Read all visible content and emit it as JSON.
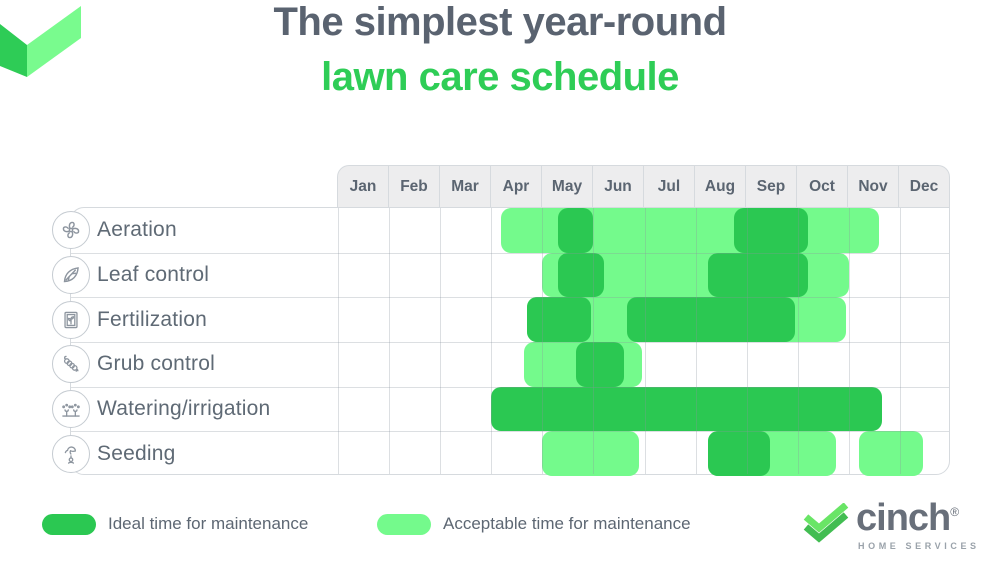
{
  "title": {
    "line1": "The simplest year-round",
    "line2": "lawn care schedule"
  },
  "colors": {
    "ideal_green": "#2bc852",
    "acceptable_green": "#74fa8c",
    "title_gray": "#5a6370",
    "title_green": "#2ecd56",
    "text_gray": "#5d6773",
    "grid_line": "#d6dade",
    "header_bg": "#ededee"
  },
  "chart_data": {
    "type": "gantt-schedule",
    "title": "The simplest year-round lawn care schedule",
    "x_axis": {
      "unit": "month",
      "labels": [
        "Jan",
        "Feb",
        "Mar",
        "Apr",
        "May",
        "Jun",
        "Jul",
        "Aug",
        "Sep",
        "Oct",
        "Nov",
        "Dec"
      ],
      "range": [
        0,
        12
      ]
    },
    "grid": true,
    "legend_position": "bottom-left",
    "legend": [
      {
        "state": "ideal",
        "label": "Ideal time for maintenance",
        "color": "#2bc852"
      },
      {
        "state": "acceptable",
        "label": "Acceptable time for maintenance",
        "color": "#74fa8c"
      }
    ],
    "tasks": [
      {
        "label": "Aeration",
        "icon": "fan-icon",
        "ideal_months": "May; late Aug–Sep",
        "acceptable_months": "mid Apr–mid Nov",
        "segments": [
          {
            "state": "acceptable",
            "start": 3.2,
            "end": 10.6
          },
          {
            "state": "ideal",
            "start": 4.3,
            "end": 5.0
          },
          {
            "state": "ideal",
            "start": 7.75,
            "end": 9.2
          }
        ]
      },
      {
        "label": "Leaf control",
        "icon": "leaf-icon",
        "ideal_months": "May; Aug–Sep",
        "acceptable_months": "May–Oct",
        "segments": [
          {
            "state": "acceptable",
            "start": 4.0,
            "end": 10.0
          },
          {
            "state": "ideal",
            "start": 4.3,
            "end": 5.2
          },
          {
            "state": "ideal",
            "start": 7.25,
            "end": 9.2
          }
        ]
      },
      {
        "label": "Fertilization",
        "icon": "fertilizer-bag-icon",
        "ideal_months": "mid Apr–May; mid Jun–Sep",
        "acceptable_months": "early Jun; Oct",
        "segments": [
          {
            "state": "acceptable",
            "start": 3.7,
            "end": 9.95
          },
          {
            "state": "ideal",
            "start": 3.7,
            "end": 4.95
          },
          {
            "state": "ideal",
            "start": 5.65,
            "end": 8.95
          }
        ]
      },
      {
        "label": "Grub control",
        "icon": "grub-icon",
        "ideal_months": "mid May–mid Jun",
        "acceptable_months": "mid Apr–Jun",
        "segments": [
          {
            "state": "acceptable",
            "start": 3.65,
            "end": 5.95
          },
          {
            "state": "ideal",
            "start": 4.65,
            "end": 5.6
          }
        ]
      },
      {
        "label": "Watering/irrigation",
        "icon": "sprinkler-icon",
        "ideal_months": "Apr–mid Nov",
        "acceptable_months": "",
        "segments": [
          {
            "state": "ideal",
            "start": 3.0,
            "end": 10.65
          }
        ]
      },
      {
        "label": "Seeding",
        "icon": "seeding-hand-icon",
        "ideal_months": "Aug–early Sep",
        "acceptable_months": "May–Jun; Sep–mid Oct; Nov",
        "segments": [
          {
            "state": "acceptable",
            "start": 4.0,
            "end": 5.9
          },
          {
            "state": "acceptable",
            "start": 7.25,
            "end": 9.75
          },
          {
            "state": "acceptable",
            "start": 10.2,
            "end": 11.45
          },
          {
            "state": "ideal",
            "start": 7.25,
            "end": 8.45
          }
        ]
      }
    ]
  },
  "logo": {
    "brand": "cinch",
    "registered": "®",
    "tagline": "HOME SERVICES"
  }
}
